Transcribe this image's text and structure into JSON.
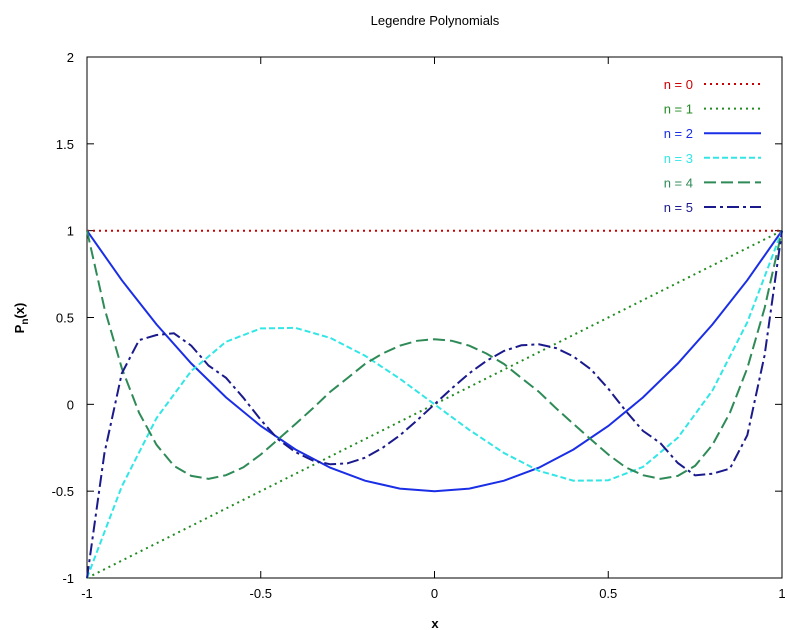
{
  "chart_data": {
    "type": "line",
    "title": "Legendre Polynomials",
    "xlabel": "x",
    "ylabel_main": "P",
    "ylabel_sub": "n",
    "ylabel_tail": "(x)",
    "xlim": [
      -1,
      1
    ],
    "ylim": [
      -1,
      2
    ],
    "xticks": [
      -1,
      -0.5,
      0,
      0.5,
      1
    ],
    "yticks": [
      -1,
      -0.5,
      0,
      0.5,
      1,
      1.5,
      2
    ],
    "xtick_labels": [
      "-1",
      "-0.5",
      "0",
      "0.5",
      "1"
    ],
    "ytick_labels": [
      "-1",
      "-0.5",
      "0",
      "0.5",
      "1",
      "1.5",
      "2"
    ],
    "grid": false,
    "legend_position": "top-right",
    "series": [
      {
        "name": "n = 0",
        "color": "#cc0000",
        "dash": "dotted",
        "x": [
          -1,
          -0.8,
          -0.6,
          -0.4,
          -0.2,
          0,
          0.2,
          0.4,
          0.6,
          0.8,
          1
        ],
        "y": [
          1,
          1,
          1,
          1,
          1,
          1,
          1,
          1,
          1,
          1,
          1
        ]
      },
      {
        "name": "n = 1",
        "color": "#228b22",
        "dash": "dotted",
        "x": [
          -1,
          -0.8,
          -0.6,
          -0.4,
          -0.2,
          0,
          0.2,
          0.4,
          0.6,
          0.8,
          1
        ],
        "y": [
          -1,
          -0.8,
          -0.6,
          -0.4,
          -0.2,
          0,
          0.2,
          0.4,
          0.6,
          0.8,
          1
        ]
      },
      {
        "name": "n = 2",
        "color": "#1a2ee6",
        "dash": "solid",
        "x": [
          -1,
          -0.9,
          -0.8,
          -0.7,
          -0.6,
          -0.5,
          -0.4,
          -0.3,
          -0.2,
          -0.1,
          0,
          0.1,
          0.2,
          0.3,
          0.4,
          0.5,
          0.6,
          0.7,
          0.8,
          0.9,
          1
        ],
        "y": [
          1,
          0.715,
          0.46,
          0.235,
          0.04,
          -0.125,
          -0.26,
          -0.365,
          -0.44,
          -0.485,
          -0.5,
          -0.485,
          -0.44,
          -0.365,
          -0.26,
          -0.125,
          0.04,
          0.235,
          0.46,
          0.715,
          1
        ]
      },
      {
        "name": "n = 3",
        "color": "#33e6e6",
        "dash": "dashed",
        "x": [
          -1,
          -0.9,
          -0.8,
          -0.7,
          -0.6,
          -0.5,
          -0.4,
          -0.3,
          -0.2,
          -0.1,
          0,
          0.1,
          0.2,
          0.3,
          0.4,
          0.5,
          0.6,
          0.7,
          0.8,
          0.9,
          1
        ],
        "y": [
          -1,
          -0.4725,
          -0.08,
          0.1925,
          0.36,
          0.4375,
          0.44,
          0.3825,
          0.28,
          0.1475,
          0,
          -0.1475,
          -0.28,
          -0.3825,
          -0.44,
          -0.4375,
          -0.36,
          -0.1925,
          0.08,
          0.4725,
          1
        ]
      },
      {
        "name": "n = 4",
        "color": "#2e8b57",
        "dash": "longdash",
        "x": [
          -1,
          -0.95,
          -0.9,
          -0.85,
          -0.8,
          -0.75,
          -0.7,
          -0.65,
          -0.6,
          -0.55,
          -0.5,
          -0.45,
          -0.4,
          -0.35,
          -0.3,
          -0.25,
          -0.2,
          -0.15,
          -0.1,
          -0.05,
          0,
          0.05,
          0.1,
          0.15,
          0.2,
          0.25,
          0.3,
          0.35,
          0.4,
          0.45,
          0.5,
          0.55,
          0.6,
          0.65,
          0.7,
          0.75,
          0.8,
          0.85,
          0.9,
          0.95,
          1
        ],
        "y": [
          1,
          0.5541,
          0.2079,
          -0.0487,
          -0.233,
          -0.3538,
          -0.4121,
          -0.429,
          -0.408,
          -0.3628,
          -0.2891,
          -0.2017,
          -0.113,
          -0.023,
          0.0729,
          0.1514,
          0.232,
          0.2923,
          0.3379,
          0.3658,
          0.375,
          0.3658,
          0.3379,
          0.2923,
          0.232,
          0.1514,
          0.0729,
          -0.023,
          -0.113,
          -0.2017,
          -0.2891,
          -0.3628,
          -0.408,
          -0.429,
          -0.4121,
          -0.3538,
          -0.233,
          -0.0487,
          0.2079,
          0.5541,
          1
        ]
      },
      {
        "name": "n = 5",
        "color": "#1a1a8c",
        "dash": "dashdot",
        "x": [
          -1,
          -0.95,
          -0.9,
          -0.85,
          -0.8,
          -0.75,
          -0.7,
          -0.65,
          -0.6,
          -0.55,
          -0.5,
          -0.45,
          -0.4,
          -0.35,
          -0.3,
          -0.25,
          -0.2,
          -0.15,
          -0.1,
          -0.05,
          0,
          0.05,
          0.1,
          0.15,
          0.2,
          0.25,
          0.3,
          0.35,
          0.4,
          0.45,
          0.5,
          0.55,
          0.6,
          0.65,
          0.7,
          0.75,
          0.8,
          0.85,
          0.9,
          0.95,
          1
        ],
        "y": [
          -1,
          -0.2824,
          0.178,
          0.3699,
          0.3995,
          0.4091,
          0.3379,
          0.2233,
          0.1527,
          0.0375,
          -0.0898,
          -0.2015,
          -0.2752,
          -0.324,
          -0.3454,
          -0.3397,
          -0.3075,
          -0.2509,
          -0.1789,
          -0.0921,
          0,
          0.0921,
          0.1789,
          0.2509,
          0.3075,
          0.3397,
          0.3454,
          0.324,
          0.2752,
          0.2015,
          0.0898,
          -0.0375,
          -0.1527,
          -0.2233,
          -0.3379,
          -0.4091,
          -0.3995,
          -0.3699,
          -0.178,
          0.2824,
          1
        ]
      }
    ]
  }
}
